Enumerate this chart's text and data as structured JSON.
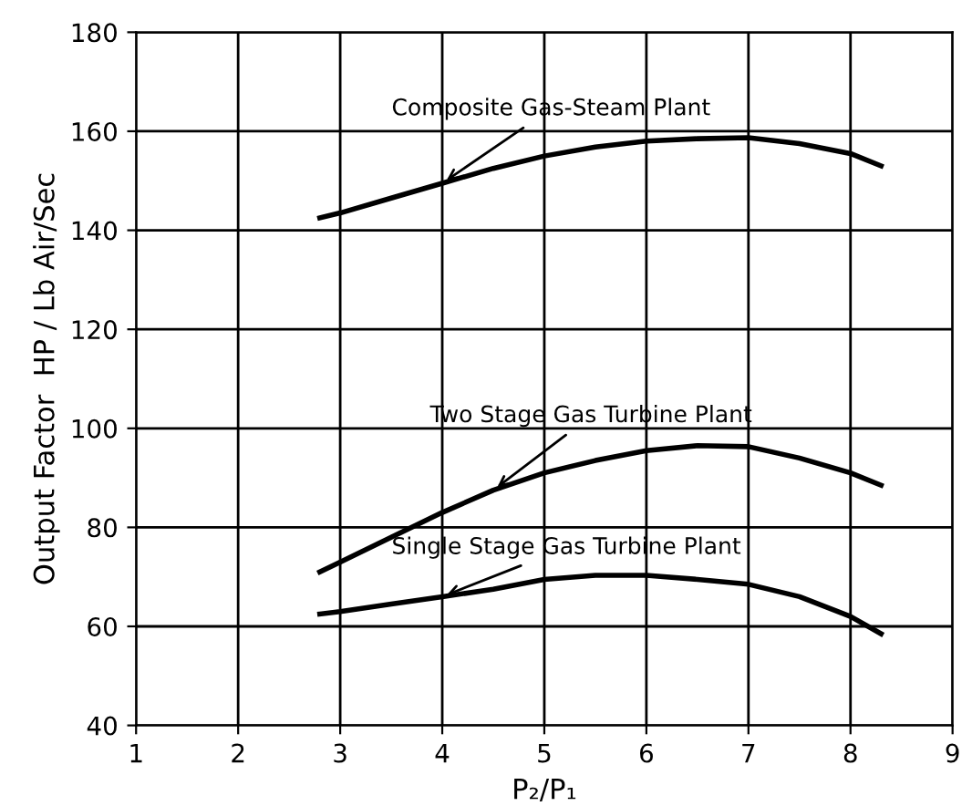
{
  "chart_data": {
    "type": "line",
    "xlabel": "P₂/P₁",
    "ylabel": "Output Factor  HP / Lb Air/Sec",
    "xlim": [
      1,
      9
    ],
    "ylim": [
      40,
      180
    ],
    "xticks": [
      1,
      2,
      3,
      4,
      5,
      6,
      7,
      8,
      9
    ],
    "yticks": [
      40,
      60,
      80,
      100,
      120,
      140,
      160,
      180
    ],
    "grid": true,
    "legend": false,
    "marker": "none",
    "line_style": "solid",
    "series": [
      {
        "name": "Composite Gas-Steam Plant",
        "color": "#000000",
        "x": [
          2.8,
          3,
          3.5,
          4,
          4.5,
          5,
          5.5,
          6,
          6.5,
          7,
          7.5,
          8,
          8.3
        ],
        "values": [
          142.5,
          143.5,
          146.5,
          149.5,
          152.5,
          155,
          156.8,
          158,
          158.5,
          158.7,
          157.5,
          155.5,
          153
        ]
      },
      {
        "name": "Two Stage Gas Turbine Plant",
        "color": "#000000",
        "x": [
          2.8,
          3,
          3.5,
          4,
          4.5,
          5,
          5.5,
          6,
          6.5,
          7,
          7.5,
          8,
          8.3
        ],
        "values": [
          71,
          73,
          78,
          83,
          87.5,
          91,
          93.5,
          95.5,
          96.5,
          96.3,
          94,
          91,
          88.5
        ]
      },
      {
        "name": "Single Stage Gas Turbine Plant",
        "color": "#000000",
        "x": [
          2.8,
          3,
          3.5,
          4,
          4.5,
          5,
          5.5,
          6,
          6.5,
          7,
          7.5,
          8,
          8.3
        ],
        "values": [
          62.5,
          63,
          64.5,
          66,
          67.5,
          69.5,
          70.3,
          70.3,
          69.5,
          68.5,
          66,
          62,
          58.5
        ]
      }
    ]
  }
}
